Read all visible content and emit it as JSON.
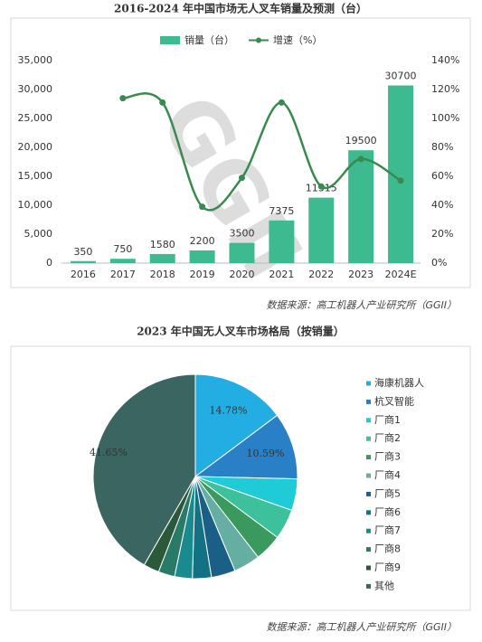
{
  "chart_data": [
    {
      "type": "bar_line",
      "title": "2016-2024 年中国市场无人叉车销量及预测（台）",
      "categories": [
        "2016",
        "2017",
        "2018",
        "2019",
        "2020",
        "2021",
        "2022",
        "2023",
        "2024E"
      ],
      "series": [
        {
          "name": "销量（台）",
          "color": "#3dba8f",
          "type": "bar",
          "values": [
            350,
            750,
            1580,
            2200,
            3500,
            7375,
            11315,
            19500,
            30700
          ]
        },
        {
          "name": "增速（%）",
          "color": "#3a8a50",
          "type": "line",
          "axis": "y2",
          "values": [
            null,
            114,
            111,
            39,
            59,
            111,
            53,
            72,
            57
          ]
        }
      ],
      "ylim": [
        0,
        35000
      ],
      "yticks": [
        0,
        {
          "value": 5000,
          "label": "5,000"
        },
        {
          "value": 10000,
          "label": "10,000"
        },
        {
          "value": 15000,
          "label": "15,000"
        },
        {
          "value": 20000,
          "label": "20,000"
        },
        {
          "value": 25000,
          "label": "25,000"
        },
        {
          "value": 30000,
          "label": "30,000"
        },
        {
          "value": 35000,
          "label": "35,000"
        }
      ],
      "y2lim": [
        0,
        140
      ],
      "y2ticks": [
        {
          "value": 0,
          "label": "0%"
        },
        {
          "value": 20,
          "label": "20%"
        },
        {
          "value": 40,
          "label": "40%"
        },
        {
          "value": 60,
          "label": "60%"
        },
        {
          "value": 80,
          "label": "80%"
        },
        {
          "value": 100,
          "label": "100%"
        },
        {
          "value": 120,
          "label": "120%"
        },
        {
          "value": 140,
          "label": "140%"
        }
      ],
      "legend": "top",
      "watermark": "GGII",
      "source": "数据来源：高工机器人产业研究所（GGII）"
    },
    {
      "type": "pie",
      "title": "2023 年中国无人叉车市场格局（按销量）",
      "categories": [
        "海康机器人",
        "杭叉智能",
        "厂商1",
        "厂商2",
        "厂商3",
        "厂商4",
        "厂商5",
        "厂商6",
        "厂商7",
        "厂商8",
        "厂商9",
        "其他"
      ],
      "values": [
        14.78,
        10.59,
        5,
        4.8,
        4.3,
        4.2,
        3.8,
        3.0,
        2.8,
        2.6,
        2.48,
        41.65
      ],
      "value_labels": [
        "14.78%",
        "10.59%",
        null,
        null,
        null,
        null,
        null,
        null,
        null,
        null,
        null,
        "41.65%"
      ],
      "colors": [
        "#22ade3",
        "#2a80c6",
        "#1fcbd6",
        "#3cc19c",
        "#3a9a5e",
        "#66aea2",
        "#1a5f86",
        "#137184",
        "#198a8e",
        "#2a7a68",
        "#2a5a3a",
        "#3b6561"
      ],
      "legend": "right",
      "source": "数据来源：高工机器人产业研究所（GGII）"
    }
  ]
}
